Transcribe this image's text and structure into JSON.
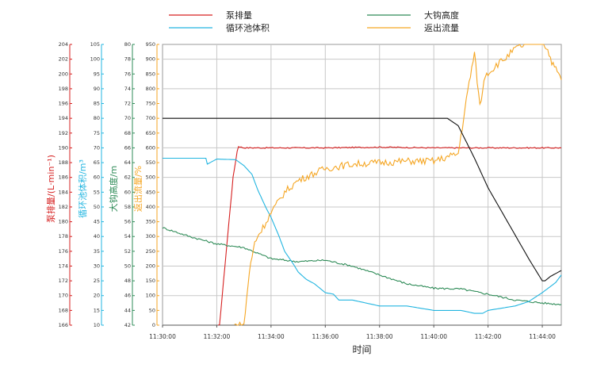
{
  "chart_data": {
    "type": "line",
    "title": "",
    "xlabel": "时间",
    "x_ticks": [
      "11:30:00",
      "11:32:00",
      "11:34:00",
      "11:36:00",
      "11:38:00",
      "11:40:00",
      "11:42:00",
      "11:44:00"
    ],
    "x_range_minutes": [
      0,
      14.7
    ],
    "legend": {
      "placement": "top",
      "entries": [
        {
          "label": "泵排量",
          "color": "#d62020"
        },
        {
          "label": "大钩高度",
          "color": "#2e8b57"
        },
        {
          "label": "循环池体积",
          "color": "#22b5e0"
        },
        {
          "label": "返出流量",
          "color": "#f5a623"
        }
      ]
    },
    "axes": [
      {
        "id": "pump",
        "label": "泵排量/(L·min⁻¹)",
        "color": "#d62020",
        "min": 166,
        "max": 204,
        "step": 2
      },
      {
        "id": "pool",
        "label": "循环池体积/m³",
        "color": "#22b5e0",
        "min": 10,
        "max": 105,
        "step": 5
      },
      {
        "id": "hook",
        "label": "大钩高度/m",
        "color": "#2e8b57",
        "min": 42,
        "max": 80,
        "step": 2
      },
      {
        "id": "flow",
        "label": "返出流量/%",
        "color": "#f5a623",
        "min": 0,
        "max": 950,
        "step": 50
      }
    ],
    "grid": true,
    "series": [
      {
        "name": "泵排量",
        "axis": "pump",
        "color": "#d62020",
        "noise": 0.08,
        "x": [
          2.05,
          2.25,
          2.45,
          2.6,
          2.75,
          2.8,
          3.0,
          4.0,
          6.0,
          8.0,
          10.0,
          12.0,
          14.0,
          14.7
        ],
        "y": [
          164,
          172,
          180,
          186,
          189.5,
          190.2,
          190.0,
          190.0,
          190.0,
          190.1,
          190.0,
          190.0,
          190.0,
          190.0
        ]
      },
      {
        "name": "大钩高度",
        "axis": "hook",
        "color": "#2e8b57",
        "noise": 0.12,
        "x": [
          0,
          1.0,
          2.0,
          3.0,
          4.0,
          5.0,
          6.0,
          7.0,
          8.0,
          9.0,
          10.0,
          11.0,
          12.0,
          13.0,
          14.0,
          14.7
        ],
        "y": [
          55.2,
          54.0,
          53.0,
          52.5,
          51.0,
          50.6,
          50.8,
          50.0,
          48.8,
          47.6,
          47.0,
          46.9,
          46.2,
          45.4,
          45.0,
          44.8
        ]
      },
      {
        "name": "循环池体积",
        "axis": "pool",
        "color": "#22b5e0",
        "noise": 0,
        "x": [
          0,
          1.0,
          1.6,
          1.65,
          2.0,
          2.7,
          3.0,
          3.3,
          3.5,
          3.8,
          4.0,
          4.3,
          4.5,
          4.8,
          5.0,
          5.3,
          5.6,
          6.0,
          6.3,
          6.5,
          7.0,
          8.0,
          9.0,
          10.0,
          11.0,
          11.5,
          11.8,
          12.0,
          13.0,
          13.5,
          14.0,
          14.5,
          14.7
        ],
        "y": [
          66.5,
          66.5,
          66.5,
          64.5,
          66.2,
          66.0,
          64.0,
          61.0,
          56.0,
          50.0,
          46.5,
          40.0,
          35.0,
          31.0,
          28.0,
          25.5,
          24.0,
          21.0,
          20.5,
          18.5,
          18.5,
          16.5,
          16.5,
          15.0,
          15.0,
          14.0,
          14.0,
          15.0,
          16.5,
          18.0,
          21.0,
          24.5,
          27.0
        ]
      },
      {
        "name": "返出流量",
        "axis": "flow",
        "color": "#f5a623",
        "noise": 12,
        "x": [
          2.65,
          2.7,
          2.9,
          3.0,
          3.2,
          3.4,
          3.5,
          3.7,
          4.0,
          4.5,
          5.0,
          5.5,
          6.0,
          7.0,
          8.0,
          9.0,
          10.0,
          10.9,
          11.1,
          11.3,
          11.5,
          11.7,
          11.9,
          12.1,
          12.3,
          12.6,
          13.0,
          13.5,
          14.0,
          14.2,
          14.4,
          14.6,
          14.7
        ],
        "y": [
          0,
          0,
          0,
          0,
          180,
          280,
          300,
          330,
          380,
          450,
          490,
          510,
          530,
          545,
          550,
          555,
          555,
          580,
          700,
          820,
          920,
          740,
          850,
          860,
          880,
          900,
          935,
          955,
          965,
          930,
          880,
          850,
          830
        ]
      },
      {
        "name": "",
        "axis": "hook",
        "color": "#111111",
        "noise": 0,
        "x": [
          0,
          1.5,
          2.8,
          3.0,
          6.0,
          10.5,
          10.9,
          11.5,
          12.0,
          12.5,
          13.0,
          13.5,
          14.0,
          14.1,
          14.3,
          14.7
        ],
        "y": [
          70.0,
          70.0,
          70.0,
          70.0,
          70.0,
          70.0,
          69.0,
          64.6,
          60.6,
          57.4,
          54.2,
          51.0,
          48.0,
          48.0,
          48.6,
          49.4
        ]
      }
    ]
  }
}
